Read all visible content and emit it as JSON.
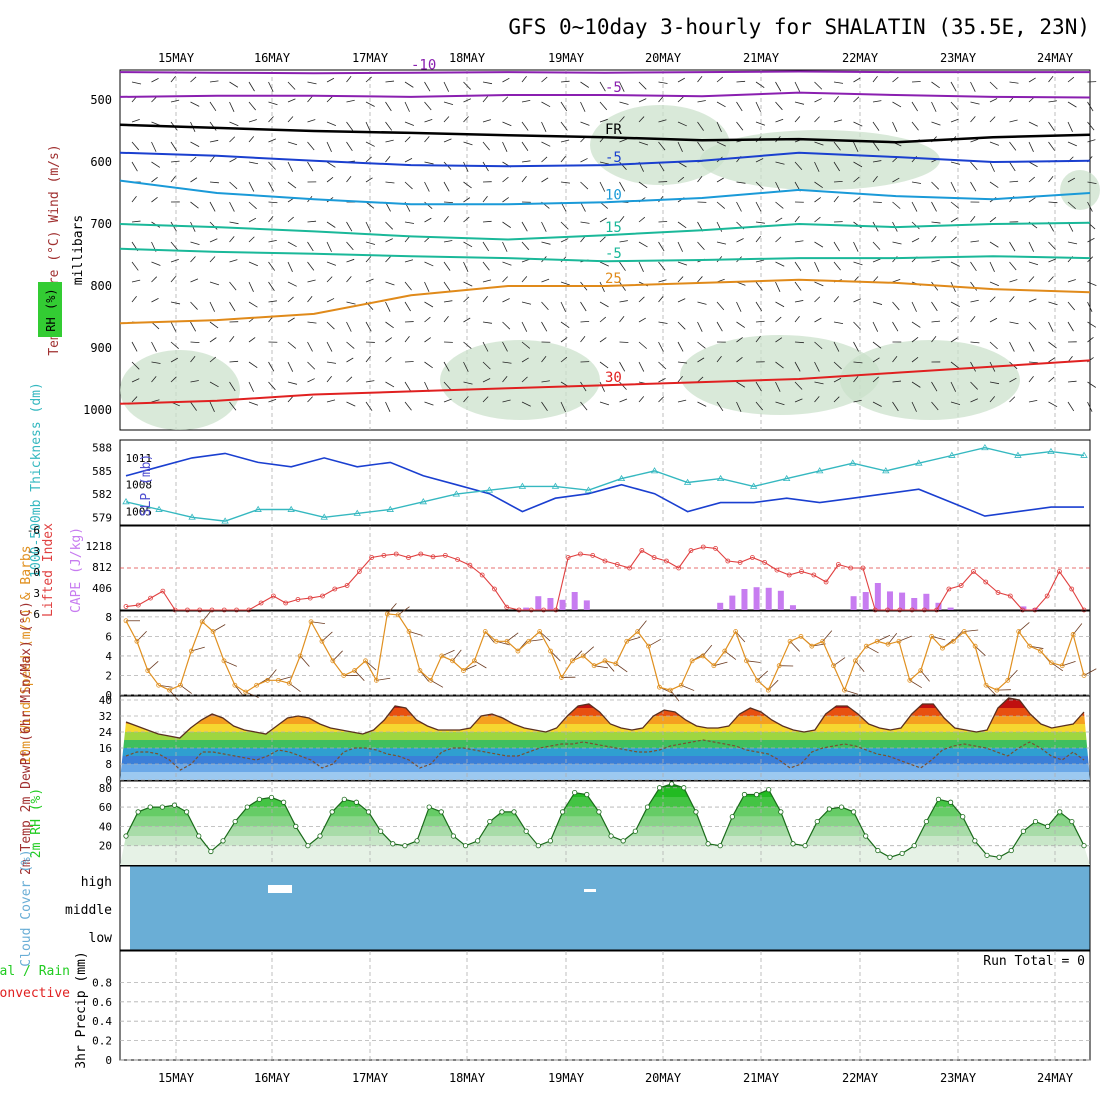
{
  "title": "GFS 0~10day 3-hourly for SHALATIN (35.5E, 23N)",
  "colors": {
    "purple": "#8a1fb0",
    "black": "#000000",
    "blue": "#1a3fcf",
    "sky": "#1a9ad8",
    "teal": "#1ab899",
    "green": "#2cb37a",
    "orange": "#e08a1a",
    "red": "#e02020",
    "cyan": "#35b8c0",
    "slp": "#1a3fd0",
    "cape": "#c77cf0",
    "li": "#e04040",
    "wind": "#e09020",
    "barb": "#6b3a20",
    "rh": "#22cc22",
    "cloud": "#6aaed6",
    "grid": "#b0b0b0"
  },
  "chart_data": [
    {
      "type": "contour",
      "panel": "upper_air",
      "ylabel": "Temperature (°C) Wind (m/s)",
      "ylabel_left": "RH (%)",
      "yunit": "millibars",
      "x_dates": [
        "15MAY",
        "16MAY",
        "17MAY",
        "18MAY",
        "19MAY",
        "20MAY",
        "21MAY",
        "22MAY",
        "23MAY",
        "24MAY"
      ],
      "y_ticks": [
        500,
        600,
        700,
        800,
        900,
        1000
      ],
      "ylim": [
        450,
        1000
      ],
      "temperature_contours": [
        {
          "label": "-10",
          "color_key": "purple",
          "p": [
            455,
            456,
            457,
            456,
            455,
            456,
            455,
            454,
            455,
            455,
            455
          ]
        },
        {
          "label": "-5",
          "color_key": "purple",
          "p": [
            495,
            493,
            493,
            495,
            492,
            492,
            494,
            488,
            492,
            495,
            496
          ]
        },
        {
          "label": "FR",
          "color_key": "black",
          "p": [
            540,
            545,
            550,
            553,
            557,
            560,
            565,
            563,
            568,
            560,
            556
          ]
        },
        {
          "label": "-5",
          "color_key": "blue",
          "p": [
            585,
            590,
            598,
            605,
            607,
            605,
            598,
            585,
            592,
            600,
            598
          ]
        },
        {
          "label": "10",
          "color_key": "sky",
          "p": [
            630,
            650,
            660,
            668,
            668,
            665,
            658,
            645,
            655,
            660,
            650
          ]
        },
        {
          "label": "15",
          "color_key": "teal",
          "p": [
            700,
            705,
            712,
            720,
            725,
            718,
            710,
            700,
            705,
            700,
            698
          ]
        },
        {
          "label": "-5",
          "color_key": "teal",
          "p": [
            740,
            745,
            748,
            752,
            755,
            760,
            758,
            755,
            755,
            752,
            755
          ]
        },
        {
          "label": "25",
          "color_key": "orange",
          "p": [
            860,
            855,
            845,
            815,
            800,
            800,
            795,
            790,
            795,
            805,
            810
          ]
        },
        {
          "label": "30",
          "color_key": "red",
          "p": [
            990,
            985,
            975,
            970,
            965,
            960,
            955,
            950,
            940,
            930,
            920
          ]
        }
      ]
    },
    {
      "type": "line",
      "panel": "slp_thickness",
      "ylabel_left": "1000-500mb Thickness (dm)",
      "ylabel_right": "SLP (mb)",
      "y_ticks_left": [
        579,
        582,
        585,
        588
      ],
      "y_ticks_right": [
        1005,
        1008,
        1011
      ],
      "series": [
        {
          "name": "SLP (mb)",
          "color_key": "slp",
          "axis": "right",
          "values": [
            1009,
            1010,
            1011,
            1011.5,
            1010.5,
            1010,
            1011,
            1010,
            1010.5,
            1009,
            1008,
            1007,
            1005,
            1006.5,
            1007,
            1008,
            1007,
            1005,
            1006,
            1006,
            1006.5,
            1006,
            1006.5,
            1007,
            1007.5,
            1006,
            1004.5,
            1005,
            1005.5,
            1005.5
          ]
        },
        {
          "name": "1000-500mb Thickness (dm)",
          "color_key": "cyan",
          "axis": "left",
          "values": [
            581,
            580,
            579,
            578.5,
            580,
            580,
            579,
            579.5,
            580,
            581,
            582,
            582.5,
            583,
            583,
            582.5,
            584,
            585,
            583.5,
            584,
            583,
            584,
            585,
            586,
            585,
            586,
            587,
            588,
            587,
            587.5,
            587
          ]
        }
      ]
    },
    {
      "type": "bar",
      "panel": "cape_li",
      "ylabel_left": "Lifted Index",
      "ylabel_right": "CAPE (J/kg)",
      "y_ticks_left": [
        "-6",
        "-3",
        "0",
        "3",
        "6"
      ],
      "y_ticks_right": [
        406,
        812,
        1218
      ],
      "series": [
        {
          "name": "CAPE (J/kg)",
          "color_key": "cape",
          "values": [
            0,
            0,
            0,
            0,
            0,
            0,
            0,
            0,
            0,
            0,
            0,
            0,
            0,
            0,
            0,
            0,
            0,
            0,
            0,
            0,
            0,
            0,
            0,
            0,
            0,
            0,
            0,
            0,
            0,
            0,
            0,
            0,
            0,
            0,
            0,
            0,
            0,
            0,
            0,
            0,
            0,
            0,
            0,
            0,
            0,
            0,
            0,
            0,
            0,
            0,
            0,
            0,
            0,
            0,
            0,
            0,
            0,
            0,
            0,
            0,
            0,
            0,
            0,
            0,
            0,
            0,
            0,
            0,
            0,
            0,
            0,
            0,
            0,
            0,
            0,
            0,
            0,
            0,
            0,
            0,
            0,
            0
          ]
        },
        {
          "name": "Lifted Index",
          "color_key": "li",
          "values": [
            6,
            6,
            6,
            6,
            6,
            6,
            6,
            6,
            6,
            6,
            6,
            6,
            6,
            6,
            6,
            6,
            6,
            6,
            6,
            6,
            6,
            6,
            6,
            6,
            6,
            6,
            6,
            6,
            6,
            6,
            6,
            6,
            6,
            6,
            6,
            6,
            6,
            6,
            6,
            6,
            6,
            6,
            6,
            6,
            6,
            6,
            6,
            6,
            6,
            6,
            6,
            6,
            6,
            6,
            6,
            6,
            6,
            6,
            6,
            6,
            6,
            6,
            6,
            6,
            6,
            6,
            6,
            6,
            6,
            6,
            6,
            6,
            6,
            6,
            6,
            6,
            6,
            6,
            6,
            6,
            6,
            6
          ]
        }
      ],
      "cape_bars": [
        0,
        0,
        0,
        0,
        0,
        0,
        0,
        0,
        0,
        0,
        0,
        0,
        0,
        0,
        0,
        0,
        0,
        0,
        0,
        0,
        0,
        0,
        0,
        0,
        0,
        0,
        0,
        0,
        0,
        0,
        0,
        0,
        0,
        40,
        230,
        200,
        170,
        300,
        160,
        0,
        0,
        0,
        0,
        0,
        0,
        0,
        0,
        0,
        0,
        120,
        240,
        350,
        380,
        370,
        320,
        80,
        0,
        0,
        0,
        0,
        230,
        300,
        450,
        310,
        290,
        200,
        270,
        120,
        40,
        0,
        0,
        0,
        0,
        0,
        60,
        30,
        0,
        0,
        0,
        0,
        0,
        0,
        0,
        0,
        0,
        0,
        0,
        0,
        0,
        0,
        0,
        0,
        0,
        0,
        0,
        0,
        0,
        0,
        0,
        0,
        0,
        0,
        0,
        0,
        0,
        0,
        0,
        0,
        0,
        0,
        0,
        0,
        0,
        0,
        0,
        0,
        0,
        0,
        0,
        0,
        0,
        0,
        0,
        0,
        0,
        0,
        0,
        0,
        0,
        0,
        0,
        0,
        0,
        0,
        0,
        0,
        0,
        0,
        0,
        0,
        0,
        0,
        0,
        0,
        0,
        0
      ],
      "li_curve": [
        5.5,
        5.3,
        4.3,
        3.3,
        6,
        6,
        6,
        6,
        6,
        6,
        6,
        5,
        4,
        5,
        4.5,
        4.3,
        4,
        3,
        2.5,
        0.5,
        -1.5,
        -1.8,
        -2,
        -1.5,
        -2,
        -1.6,
        -1.8,
        -1.2,
        -0.4,
        1,
        3,
        5.6,
        6,
        6,
        6,
        6,
        -1.5,
        -2,
        -1.8,
        -1,
        -0.5,
        0,
        -2.5,
        -1.5,
        -1,
        0,
        -2.5,
        -3,
        -2.8,
        -1,
        -0.8,
        -1.5,
        -0.8,
        0.3,
        1,
        0.5,
        1,
        2,
        -0.5,
        0,
        0,
        6,
        6,
        6,
        6,
        6,
        6,
        3,
        2.5,
        0.5,
        2,
        3.5,
        4,
        6,
        6,
        4,
        0.5,
        3,
        6
      ]
    },
    {
      "type": "line",
      "panel": "wind10m",
      "ylabel": "10m Wind Speed (m/s) & Barbs",
      "y_ticks": [
        0,
        2,
        4,
        6,
        8
      ],
      "ylim": [
        0,
        8.6
      ],
      "series": [
        {
          "name": "10m Wind Speed",
          "color_key": "wind",
          "values": [
            7.6,
            5.5,
            2.5,
            1,
            0.5,
            1,
            4.5,
            7.5,
            6.5,
            3.5,
            1,
            0.3,
            1,
            1.5,
            1.5,
            1.2,
            4,
            7.5,
            5.5,
            3.5,
            2,
            2.5,
            3.5,
            1.5,
            8.3,
            8.2,
            6.5,
            2.5,
            1.5,
            4,
            3.5,
            2.5,
            3.5,
            6.5,
            5.5,
            5.5,
            4.5,
            5.5,
            6.5,
            4.5,
            1.8,
            3.5,
            4,
            3,
            3.5,
            3.2,
            5.5,
            6.5,
            5,
            0.8,
            0.5,
            1,
            3.5,
            4,
            3,
            4.5,
            6.5,
            3.5,
            1.5,
            0.5,
            3,
            5.5,
            6,
            5,
            5.5,
            3,
            0.5,
            3.5,
            5,
            5.5,
            5.2,
            5.5,
            1.5,
            2.5,
            6,
            4.8,
            5.5,
            6.5,
            5,
            1,
            0.5,
            1.5,
            6.5,
            5,
            4.5,
            3.3,
            3,
            6.2,
            2
          ]
        }
      ]
    },
    {
      "type": "area",
      "panel": "temp2m",
      "ylabel": "2m Temp 2m DewPt (6hr Min/Max) (°C)",
      "y_ticks": [
        0,
        8,
        16,
        24,
        32,
        40
      ],
      "ylim": [
        0,
        42
      ],
      "series": [
        {
          "name": "2m Temp",
          "values": [
            29,
            27,
            25,
            23,
            22,
            21,
            26,
            30,
            33,
            31,
            27,
            25,
            24,
            23,
            27,
            31,
            32,
            31,
            28,
            26,
            25,
            24,
            23,
            25,
            30,
            37,
            36,
            30,
            27,
            25,
            25,
            25,
            26,
            32,
            33,
            31,
            28,
            26,
            25,
            24,
            26,
            32,
            37,
            38,
            34,
            28,
            26,
            25,
            26,
            32,
            35,
            34,
            30,
            27,
            26,
            26,
            27,
            33,
            36,
            34,
            30,
            27,
            25,
            24,
            25,
            33,
            37,
            37,
            33,
            28,
            26,
            25,
            26,
            33,
            38,
            38,
            31,
            26,
            25,
            24,
            25,
            36,
            41,
            40,
            33,
            28,
            26,
            27,
            28,
            34
          ]
        },
        {
          "name": "2m DewPt",
          "values": [
            12,
            14,
            14,
            13,
            10,
            5,
            8,
            14,
            14,
            13,
            12,
            11,
            10,
            12,
            15,
            14,
            12,
            10,
            6,
            8,
            14,
            16,
            16,
            15,
            13,
            12,
            10,
            6,
            8,
            14,
            16,
            16,
            15,
            14,
            13,
            12,
            12,
            14,
            16,
            17,
            18,
            18,
            19,
            18,
            17,
            16,
            15,
            14,
            14,
            15,
            17,
            18,
            19,
            20,
            19,
            18,
            17,
            15,
            14,
            13,
            10,
            6,
            8,
            14,
            16,
            17,
            18,
            17,
            15,
            13,
            12,
            10,
            8,
            6,
            10,
            15,
            17,
            18,
            17,
            16,
            14,
            12,
            16,
            19,
            16,
            12,
            10,
            14,
            10
          ]
        }
      ]
    },
    {
      "type": "area",
      "panel": "rh2m",
      "ylabel": "2m RH (%)",
      "y_ticks": [
        20,
        40,
        60,
        80
      ],
      "ylim": [
        0,
        87
      ],
      "series": [
        {
          "name": "2m RH",
          "values": [
            30,
            55,
            60,
            60,
            62,
            55,
            30,
            14,
            25,
            45,
            60,
            68,
            70,
            65,
            40,
            20,
            30,
            55,
            68,
            65,
            55,
            35,
            22,
            20,
            25,
            60,
            55,
            30,
            20,
            25,
            45,
            55,
            55,
            35,
            20,
            25,
            55,
            75,
            73,
            55,
            30,
            25,
            35,
            60,
            80,
            84,
            80,
            55,
            22,
            20,
            50,
            73,
            73,
            78,
            55,
            22,
            20,
            45,
            58,
            60,
            55,
            30,
            15,
            8,
            12,
            20,
            45,
            68,
            65,
            50,
            25,
            10,
            8,
            15,
            35,
            45,
            40,
            55,
            45,
            20
          ]
        }
      ]
    },
    {
      "type": "heatmap",
      "panel": "cloud",
      "ylabel": "Cloud Cover (%)",
      "rows": [
        "high",
        "middle",
        "low"
      ]
    },
    {
      "type": "bar",
      "panel": "precip",
      "ylabel": "3hr Precip (mm)",
      "ylabel_left": "Total / Rain",
      "ylabel_left2": "Convective",
      "y_ticks": [
        "0",
        "0.2",
        "0.4",
        "0.6",
        "0.8"
      ],
      "ylim": [
        0,
        1
      ],
      "run_total": "Run Total = 0",
      "series": [
        {
          "name": "Total / Rain",
          "values": []
        }
      ]
    }
  ]
}
